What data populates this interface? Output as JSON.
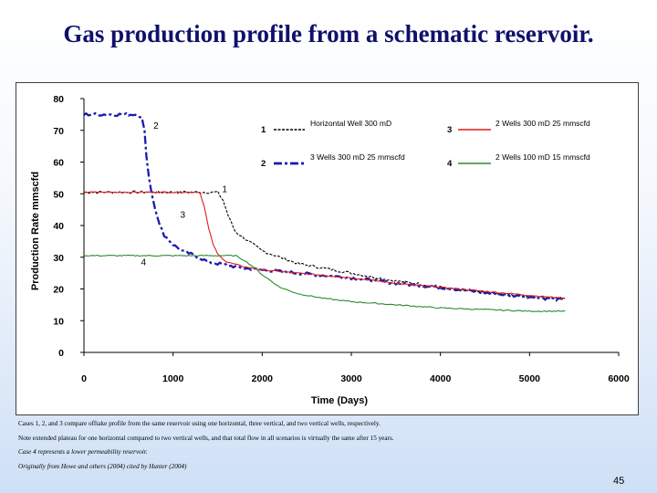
{
  "title": "Gas production profile from a schematic reservoir.",
  "page_number": "45",
  "notes": {
    "line1": "Cases 1, 2, and 3 compare offtake profile from the same reservoir using one horizontal, three vertical, and two vertical wells, respectively.",
    "line2": "Note extended plateau for one horizontal compared to two vertical wells, and that total flow in all scenarios is virtually the same after 15 years.",
    "line3": "Case 4 represents a lower permeability reservoir.",
    "line4": "Originally from Howe and others (2004) cited by Hunter (2004)"
  },
  "chart_data": {
    "type": "line",
    "xlabel": "Time (Days)",
    "ylabel": "Production Rate  mmscfd",
    "xlim": [
      0,
      6000
    ],
    "ylim": [
      0,
      80
    ],
    "xticks": [
      "0",
      "1000",
      "2000",
      "3000",
      "4000",
      "5000",
      "6000"
    ],
    "yticks": [
      "0",
      "10",
      "20",
      "30",
      "40",
      "50",
      "60",
      "70",
      "80"
    ],
    "grid": false,
    "legend_placement": "top-right",
    "series": [
      {
        "id": "1",
        "name": "Horizontal Well 300 mD",
        "color": "#000000",
        "style": "dashed-noisy",
        "curve_label": "1",
        "x": [
          0,
          500,
          1000,
          1300,
          1500,
          1560,
          1620,
          1700,
          1800,
          1900,
          2000,
          2200,
          2400,
          2600,
          2800,
          3000,
          3200,
          3500,
          3800,
          4000,
          4300,
          4600,
          5000,
          5400
        ],
        "values": [
          50.5,
          50.5,
          50.5,
          50.5,
          50.5,
          48,
          43,
          38,
          36,
          34,
          32,
          30,
          28,
          27,
          26,
          25,
          24,
          22.5,
          21.5,
          20.5,
          19.5,
          18.5,
          17.5,
          17
        ]
      },
      {
        "id": "2",
        "name": "3 Wells 300 mD 25 mmscfd",
        "color": "#1a1ab0",
        "style": "dash-dot-bold",
        "curve_label": "2",
        "x": [
          0,
          600,
          650,
          680,
          700,
          730,
          760,
          800,
          850,
          900,
          1000,
          1100,
          1200,
          1400,
          1600,
          1800,
          2000,
          2200,
          2400,
          2600,
          2800,
          3000,
          3300,
          3600,
          4000,
          4300,
          4600,
          5000,
          5400
        ],
        "values": [
          75,
          75,
          74,
          70,
          62,
          55,
          50,
          45,
          40,
          37,
          34,
          32,
          31,
          28.5,
          27.5,
          26.5,
          26,
          25.5,
          25,
          24.5,
          24,
          23.5,
          22.5,
          21.5,
          20.5,
          19.5,
          18.5,
          17.5,
          16.5
        ]
      },
      {
        "id": "3",
        "name": "2 Wells 300 mD 25 mmscfd",
        "color": "#dd1c1c",
        "style": "solid",
        "curve_label": "3",
        "x": [
          0,
          500,
          1000,
          1200,
          1300,
          1350,
          1400,
          1450,
          1500,
          1600,
          1800,
          2000,
          2200,
          2400,
          2600,
          2800,
          3000,
          3300,
          3600,
          4000,
          4400,
          4800,
          5200,
          5400
        ],
        "values": [
          50.5,
          50.5,
          50.5,
          50.5,
          50.5,
          46,
          39,
          34,
          31,
          28.5,
          27,
          26,
          25.5,
          25,
          24.5,
          24,
          23.5,
          22.5,
          21.5,
          20.5,
          19.5,
          18.5,
          17.5,
          17
        ]
      },
      {
        "id": "4",
        "name": "2 Wells 100 mD 15 mmscfd",
        "color": "#2e8b2e",
        "style": "solid",
        "curve_label": "4",
        "x": [
          0,
          500,
          1000,
          1400,
          1700,
          1800,
          1900,
          2000,
          2100,
          2200,
          2400,
          2700,
          3000,
          3500,
          4000,
          4500,
          5000,
          5400
        ],
        "values": [
          30.5,
          30.5,
          30.5,
          30.5,
          30.5,
          29,
          27,
          24.5,
          22.5,
          20.5,
          18.5,
          17,
          16,
          15,
          14,
          13.5,
          13,
          13
        ]
      }
    ]
  }
}
